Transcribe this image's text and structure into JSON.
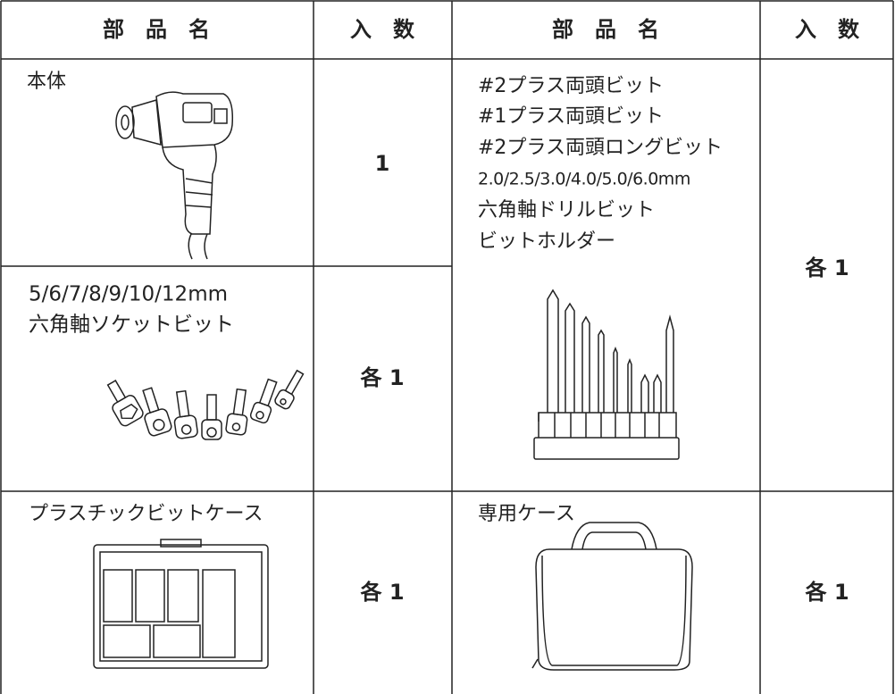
{
  "header": [
    "部　品　名",
    "入　数",
    "部　品　名",
    "入　数"
  ],
  "left": [
    {
      "name": [
        "本体"
      ],
      "qty": "1"
    },
    {
      "name": [
        "5/6/7/8/9/10/12mm",
        "六角軸ソケットビット"
      ],
      "qty": "各 1"
    },
    {
      "name": [
        "プラスチックビットケース"
      ],
      "qty": "各 1"
    }
  ],
  "right": [
    {
      "name": [
        "#2プラス両頭ビット",
        "#1プラス両頭ビット",
        "#2プラス両頭ロングビット",
        "2.0/2.5/3.0/4.0/5.0/6.0mm",
        "六角軸ドリルビット",
        "ビットホルダー"
      ],
      "qty": "各 1"
    },
    {
      "name": [
        "専用ケース"
      ],
      "qty": "各 1"
    }
  ]
}
